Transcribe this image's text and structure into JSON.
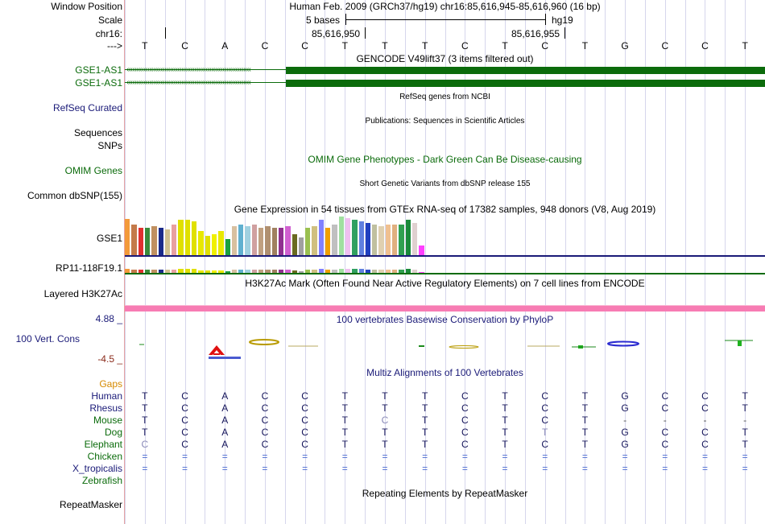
{
  "header": {
    "window_position_label": "Window Position",
    "scale_label": "Scale",
    "chrom_label": "chr16:",
    "arrow_label": "--->",
    "title": "Human Feb. 2009 (GRCh37/hg19)   chr16:85,616,945-85,616,960 (16 bp)",
    "scale_text": "5 bases",
    "assembly": "hg19",
    "coord_1": "85,616,950",
    "coord_2": "85,616,955"
  },
  "dna": {
    "bases": [
      "T",
      "C",
      "A",
      "C",
      "C",
      "T",
      "T",
      "T",
      "C",
      "T",
      "C",
      "T",
      "G",
      "C",
      "C",
      "T"
    ]
  },
  "tracks": {
    "gencode_title": "GENCODE V49lift37 (3 items filtered out)",
    "gencode_items": [
      "GSE1-AS1",
      "GSE1-AS1"
    ],
    "refseq_title": "RefSeq genes from NCBI",
    "refseq_label": "RefSeq Curated",
    "pubs_title": "Publications: Sequences in Scientific Articles",
    "pubs_label": "Sequences",
    "snps_label": "SNPs",
    "omim_title": "OMIM Gene Phenotypes - Dark Green Can Be Disease-causing",
    "omim_label": "OMIM Genes",
    "dbsnp_title": "Short Genetic Variants from dbSNP release 155",
    "dbsnp_label": "Common dbSNP(155)",
    "gtex_title": "Gene Expression in 54 tissues from GTEx RNA-seq of 17382 samples, 948 donors (V8, Aug 2019)",
    "gtex_gene_1": "GSE1",
    "gtex_gene_2": "RP11-118F19.1",
    "h3k27_title": "H3K27Ac Mark (Often Found Near Active Regulatory Elements) on 7 cell lines from ENCODE",
    "h3k27_label": "Layered H3K27Ac",
    "phylop_title": "100 vertebrates Basewise Conservation by PhyloP",
    "phylop_max": "4.88 _",
    "phylop_min": "-4.5 _",
    "phylop_label": "100 Vert. Cons",
    "multiz_title": "Multiz Alignments of 100 Vertebrates",
    "gaps_label": "Gaps",
    "repeat_title": "Repeating Elements by RepeatMasker",
    "repeat_label": "RepeatMasker"
  },
  "alignment": [
    {
      "species": "Human",
      "seq": [
        "T",
        "C",
        "A",
        "C",
        "C",
        "T",
        "T",
        "T",
        "C",
        "T",
        "C",
        "T",
        "G",
        "C",
        "C",
        "T"
      ]
    },
    {
      "species": "Rhesus",
      "seq": [
        "T",
        "C",
        "A",
        "C",
        "C",
        "T",
        "T",
        "T",
        "C",
        "T",
        "C",
        "T",
        "G",
        "C",
        "C",
        "T"
      ]
    },
    {
      "species": "Mouse",
      "seq": [
        "T",
        "C",
        "A",
        "C",
        "C",
        "T",
        "C",
        "T",
        "C",
        "T",
        "C",
        "T",
        "-",
        "-",
        "-",
        "-"
      ]
    },
    {
      "species": "Dog",
      "seq": [
        "T",
        "C",
        "A",
        "C",
        "C",
        "T",
        "T",
        "T",
        "C",
        "T",
        "T",
        "T",
        "G",
        "C",
        "C",
        "T"
      ]
    },
    {
      "species": "Elephant",
      "seq": [
        "C",
        "C",
        "A",
        "C",
        "C",
        "T",
        "T",
        "T",
        "C",
        "T",
        "C",
        "T",
        "G",
        "C",
        "C",
        "T"
      ]
    },
    {
      "species": "Chicken",
      "seq": [
        "=",
        "=",
        "=",
        "=",
        "=",
        "=",
        "=",
        "=",
        "=",
        "=",
        "=",
        "=",
        "=",
        "=",
        "=",
        "="
      ]
    },
    {
      "species": "X_tropicalis",
      "seq": [
        "=",
        "=",
        "=",
        "=",
        "=",
        "=",
        "=",
        "=",
        "=",
        "=",
        "=",
        "=",
        "=",
        "=",
        "=",
        "="
      ]
    },
    {
      "species": "Zebrafish",
      "seq": [
        "",
        "",
        "",
        "",
        "",
        "",
        "",
        "",
        "",
        "",
        "",
        "",
        "",
        "",
        "",
        ""
      ]
    }
  ],
  "colors": {
    "gene_green": "#0b6b0b",
    "h3k27_pink": "#f77cb3",
    "navy": "#1a1a78",
    "gaps_orange": "#d68a00",
    "divider": "#e7a3a3"
  }
}
